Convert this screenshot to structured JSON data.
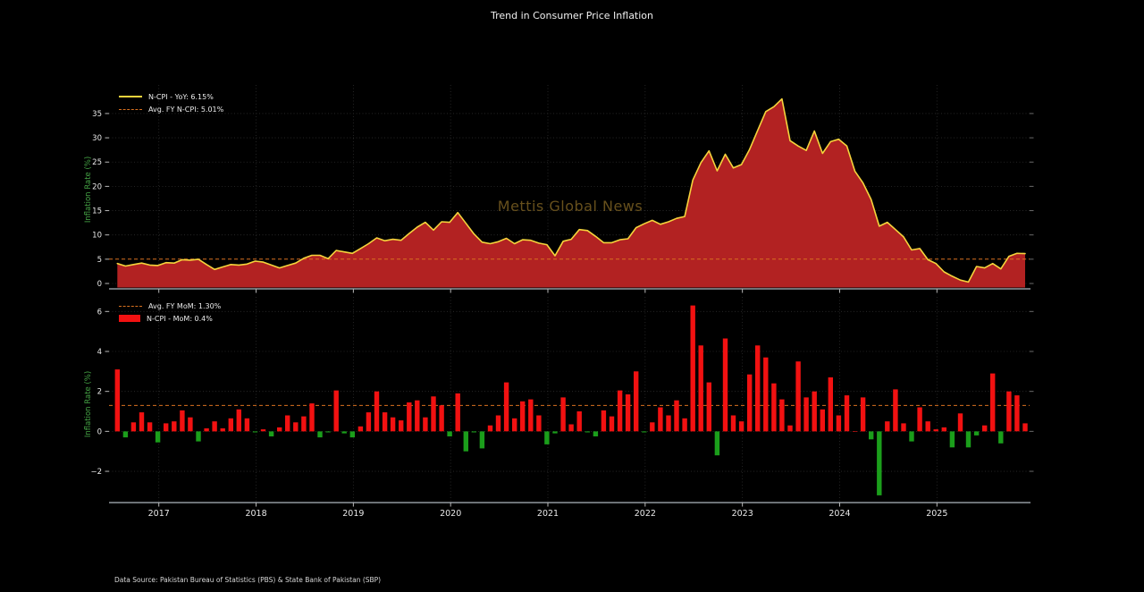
{
  "title": "Trend in Consumer Price Inflation",
  "watermark": "Mettis Global News",
  "footer": "Data Source: Pakistan Bureau of Statistics (PBS) & State Bank of Pakistan (SBP)",
  "colors": {
    "background": "#000000",
    "yoy_line": "#f5d33c",
    "area_fill": "#b22222",
    "avg_line": "#d8701f",
    "bar_positive": "#f21111",
    "bar_negative": "#1b9e1b",
    "axis_label": "#46a546",
    "tick_label": "#e8e8e8",
    "grid": "#2d2d2d",
    "watermark": "#7a5f22",
    "spine": "#aeb6be"
  },
  "x_axis": {
    "start_month": "2016-07",
    "frequency": "monthly",
    "year_labels": [
      "2017",
      "2018",
      "2019",
      "2020",
      "2021",
      "2022",
      "2023",
      "2024",
      "2025"
    ],
    "year_month_index": [
      6,
      18,
      30,
      42,
      54,
      66,
      78,
      90,
      102
    ]
  },
  "chart_data": [
    {
      "type": "area",
      "series_name": "N-CPI YoY",
      "legend": [
        {
          "label": "N-CPI - YoY: 6.15%",
          "style": "line"
        },
        {
          "label": "Avg. FY N-CPI: 5.01%",
          "style": "dashed"
        }
      ],
      "ylabel": "Inflation Rate (%)",
      "yticks": [
        0,
        5,
        10,
        15,
        20,
        25,
        30,
        35
      ],
      "ylim": [
        -0.92,
        40.88
      ],
      "avg_value": 5.01,
      "latest_value": 6.15,
      "grid": true,
      "legend_position": "upper-left",
      "values": [
        4.1,
        3.6,
        3.9,
        4.2,
        3.8,
        3.7,
        4.3,
        4.2,
        4.9,
        4.8,
        5.0,
        3.9,
        2.9,
        3.4,
        3.9,
        3.8,
        4.0,
        4.6,
        4.4,
        3.8,
        3.2,
        3.7,
        4.2,
        5.2,
        5.8,
        5.8,
        5.1,
        6.8,
        6.5,
        6.2,
        7.2,
        8.2,
        9.4,
        8.8,
        9.1,
        8.9,
        10.3,
        11.6,
        12.6,
        11.0,
        12.7,
        12.6,
        14.6,
        12.4,
        10.2,
        8.5,
        8.2,
        8.6,
        9.3,
        8.2,
        9.0,
        8.9,
        8.3,
        8.0,
        5.7,
        8.7,
        9.1,
        11.1,
        10.9,
        9.7,
        8.4,
        8.4,
        9.0,
        9.2,
        11.5,
        12.3,
        13.0,
        12.2,
        12.7,
        13.4,
        13.8,
        21.3,
        24.9,
        27.3,
        23.2,
        26.6,
        23.8,
        24.5,
        27.6,
        31.5,
        35.4,
        36.4,
        38.0,
        29.4,
        28.3,
        27.4,
        31.4,
        26.8,
        29.2,
        29.7,
        28.3,
        23.1,
        20.7,
        17.3,
        11.8,
        12.6,
        11.1,
        9.6,
        6.9,
        7.2,
        4.9,
        4.1,
        2.4,
        1.5,
        0.7,
        0.3,
        3.5,
        3.2,
        4.1,
        3.0,
        5.6,
        6.2,
        6.15
      ]
    },
    {
      "type": "bar",
      "series_name": "N-CPI MoM",
      "legend": [
        {
          "label": "Avg. FY MoM: 1.30%",
          "style": "dashed"
        },
        {
          "label": "N-CPI - MoM: 0.4%",
          "style": "bar"
        }
      ],
      "ylabel": "Inflation Rate (%)",
      "yticks": [
        -2,
        0,
        2,
        4,
        6
      ],
      "ylim": [
        -3.52,
        6.73
      ],
      "avg_value": 1.3,
      "latest_value": 0.4,
      "grid": true,
      "legend_position": "upper-left",
      "values": [
        3.1,
        -0.3,
        0.45,
        0.95,
        0.45,
        -0.55,
        0.4,
        0.5,
        1.05,
        0.7,
        -0.5,
        0.15,
        0.5,
        0.15,
        0.65,
        1.1,
        0.65,
        -0.05,
        0.1,
        -0.25,
        0.2,
        0.8,
        0.45,
        0.75,
        1.4,
        -0.3,
        -0.05,
        2.05,
        -0.1,
        -0.3,
        0.25,
        0.95,
        2.0,
        0.95,
        0.7,
        0.55,
        1.45,
        1.55,
        0.7,
        1.75,
        1.3,
        -0.25,
        1.9,
        -1.0,
        -0.05,
        -0.85,
        0.3,
        0.8,
        2.45,
        0.65,
        1.5,
        1.6,
        0.8,
        -0.65,
        -0.1,
        1.7,
        0.35,
        1.0,
        -0.05,
        -0.25,
        1.05,
        0.75,
        2.05,
        1.85,
        3.0,
        -0.05,
        0.45,
        1.2,
        0.8,
        1.55,
        0.65,
        6.3,
        4.3,
        2.45,
        -1.2,
        4.65,
        0.8,
        0.5,
        2.85,
        4.3,
        3.7,
        2.4,
        1.6,
        0.3,
        3.5,
        1.7,
        2.0,
        1.1,
        2.7,
        0.8,
        1.8,
        0.0,
        1.7,
        -0.4,
        -3.2,
        0.5,
        2.1,
        0.4,
        -0.5,
        1.2,
        0.5,
        0.1,
        0.2,
        -0.8,
        0.9,
        -0.8,
        -0.2,
        0.3,
        2.9,
        -0.6,
        2.0,
        1.8,
        0.4
      ]
    }
  ]
}
